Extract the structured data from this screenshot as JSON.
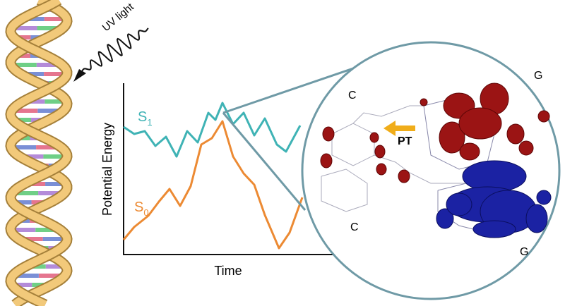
{
  "dna_illustration": {
    "label": "UV light"
  },
  "energy_plot": {
    "y_axis_label": "Potential Energy",
    "x_axis_label": "Time",
    "curves": [
      {
        "symbol": "S",
        "subscript": "1"
      },
      {
        "symbol": "S",
        "subscript": "0"
      }
    ]
  },
  "zoom_view": {
    "bases": [
      "C",
      "C",
      "G",
      "G"
    ],
    "transfer_label": "PT"
  }
}
